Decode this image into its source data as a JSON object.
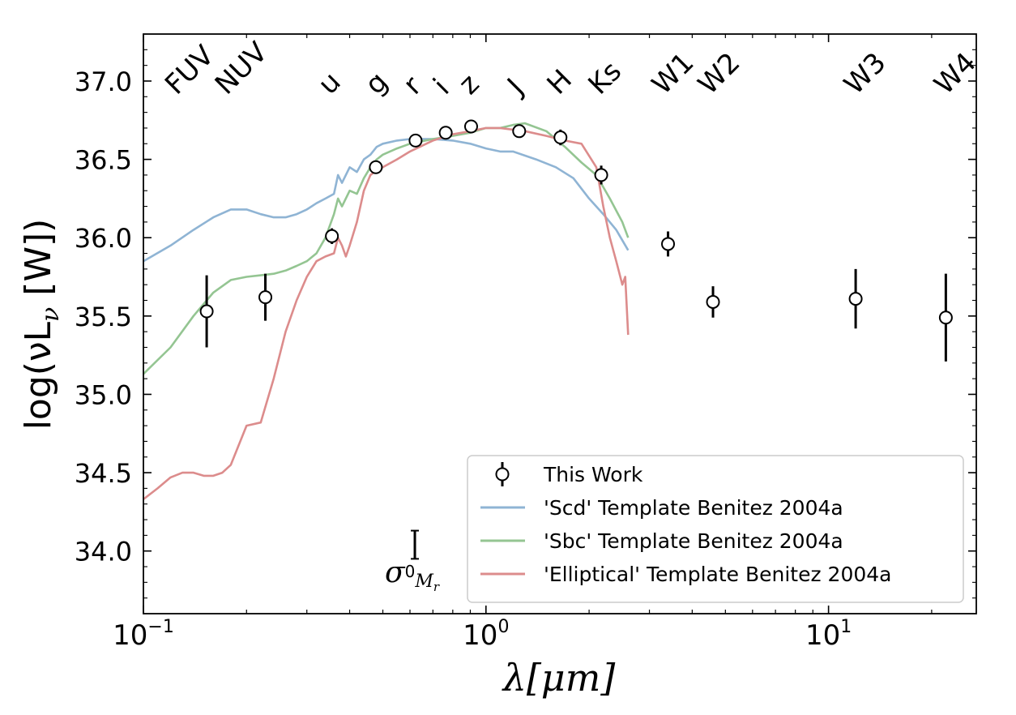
{
  "chart_data": {
    "type": "scatter",
    "xlabel_prefix": "λ",
    "xlabel_unit": "[μm]",
    "ylabel_main": "log(νL",
    "ylabel_sub": "ν",
    "ylabel_unit": " [W])",
    "xscale": "log",
    "xlim": [
      0.1,
      27
    ],
    "ylim": [
      33.6,
      37.3
    ],
    "x_ticks": [
      {
        "value": 0.1,
        "base": "10",
        "exp": "−1"
      },
      {
        "value": 1,
        "base": "10",
        "exp": "0"
      },
      {
        "value": 10,
        "base": "10",
        "exp": "1"
      }
    ],
    "y_ticks": [
      {
        "value": 34.0,
        "label": "34.0"
      },
      {
        "value": 34.5,
        "label": "34.5"
      },
      {
        "value": 35.0,
        "label": "35.0"
      },
      {
        "value": 35.5,
        "label": "35.5"
      },
      {
        "value": 36.0,
        "label": "36.0"
      },
      {
        "value": 36.5,
        "label": "36.5"
      },
      {
        "value": 37.0,
        "label": "37.0"
      }
    ],
    "band_labels": [
      {
        "label": "FUV",
        "x": 0.125,
        "y": 37.05
      },
      {
        "label": "NUV",
        "x": 0.175,
        "y": 37.05
      },
      {
        "label": "u",
        "x": 0.35,
        "y": 37.05
      },
      {
        "label": "g",
        "x": 0.48,
        "y": 37.05
      },
      {
        "label": "r",
        "x": 0.62,
        "y": 37.05
      },
      {
        "label": "i",
        "x": 0.76,
        "y": 37.05
      },
      {
        "label": "z",
        "x": 0.9,
        "y": 37.05
      },
      {
        "label": "J",
        "x": 1.25,
        "y": 37.05
      },
      {
        "label": "H",
        "x": 1.63,
        "y": 37.05
      },
      {
        "label": "Ks",
        "x": 2.15,
        "y": 37.05
      },
      {
        "label": "W1",
        "x": 3.3,
        "y": 37.05
      },
      {
        "label": "W2",
        "x": 4.5,
        "y": 37.05
      },
      {
        "label": "W3",
        "x": 12.0,
        "y": 37.05
      },
      {
        "label": "W4",
        "x": 22.0,
        "y": 37.05
      }
    ],
    "colors": {
      "scd": "#8fb4d4",
      "sbc": "#94c592",
      "elliptical": "#dc8c8c",
      "points": "#000000"
    },
    "series": [
      {
        "name": "This Work",
        "kind": "errorbar",
        "points": [
          {
            "x": 0.153,
            "y": 35.53,
            "err": 0.23
          },
          {
            "x": 0.227,
            "y": 35.62,
            "err": 0.15
          },
          {
            "x": 0.355,
            "y": 36.01,
            "err": 0.05
          },
          {
            "x": 0.477,
            "y": 36.45,
            "err": 0.03
          },
          {
            "x": 0.623,
            "y": 36.62,
            "err": 0.03
          },
          {
            "x": 0.763,
            "y": 36.67,
            "err": 0.03
          },
          {
            "x": 0.905,
            "y": 36.71,
            "err": 0.03
          },
          {
            "x": 1.25,
            "y": 36.68,
            "err": 0.03
          },
          {
            "x": 1.65,
            "y": 36.64,
            "err": 0.05
          },
          {
            "x": 2.17,
            "y": 36.4,
            "err": 0.06
          },
          {
            "x": 3.4,
            "y": 35.96,
            "err": 0.08
          },
          {
            "x": 4.6,
            "y": 35.59,
            "err": 0.1
          },
          {
            "x": 12.0,
            "y": 35.61,
            "err": 0.19
          },
          {
            "x": 22.0,
            "y": 35.49,
            "err": 0.28
          }
        ]
      },
      {
        "name": "'Scd' Template Benitez 2004a",
        "kind": "line",
        "color_key": "scd",
        "x": [
          0.1,
          0.12,
          0.14,
          0.16,
          0.18,
          0.2,
          0.22,
          0.24,
          0.26,
          0.28,
          0.3,
          0.32,
          0.34,
          0.36,
          0.37,
          0.38,
          0.4,
          0.42,
          0.44,
          0.46,
          0.48,
          0.5,
          0.55,
          0.6,
          0.7,
          0.8,
          0.9,
          1.0,
          1.1,
          1.2,
          1.4,
          1.6,
          1.8,
          2.0,
          2.2,
          2.4,
          2.6
        ],
        "y": [
          35.85,
          35.95,
          36.05,
          36.13,
          36.18,
          36.18,
          36.15,
          36.13,
          36.13,
          36.15,
          36.18,
          36.22,
          36.25,
          36.28,
          36.4,
          36.35,
          36.45,
          36.42,
          36.5,
          36.53,
          36.58,
          36.6,
          36.62,
          36.63,
          36.63,
          36.62,
          36.6,
          36.57,
          36.55,
          36.55,
          36.5,
          36.45,
          36.38,
          36.25,
          36.15,
          36.05,
          35.92
        ]
      },
      {
        "name": "'Sbc' Template Benitez 2004a",
        "kind": "line",
        "color_key": "sbc",
        "x": [
          0.1,
          0.12,
          0.14,
          0.16,
          0.18,
          0.2,
          0.22,
          0.24,
          0.26,
          0.28,
          0.3,
          0.32,
          0.34,
          0.36,
          0.37,
          0.38,
          0.4,
          0.42,
          0.44,
          0.46,
          0.48,
          0.5,
          0.55,
          0.6,
          0.7,
          0.8,
          0.9,
          1.0,
          1.1,
          1.2,
          1.3,
          1.5,
          1.7,
          1.9,
          2.1,
          2.3,
          2.5,
          2.6
        ],
        "y": [
          35.13,
          35.3,
          35.5,
          35.65,
          35.73,
          35.75,
          35.76,
          35.77,
          35.79,
          35.82,
          35.85,
          35.9,
          36.0,
          36.15,
          36.25,
          36.2,
          36.3,
          36.28,
          36.38,
          36.45,
          36.5,
          36.53,
          36.57,
          36.6,
          36.63,
          36.65,
          36.67,
          36.7,
          36.7,
          36.72,
          36.73,
          36.68,
          36.58,
          36.48,
          36.4,
          36.25,
          36.1,
          36.0
        ]
      },
      {
        "name": "'Elliptical' Template Benitez 2004a",
        "kind": "line",
        "color_key": "elliptical",
        "x": [
          0.1,
          0.11,
          0.12,
          0.13,
          0.14,
          0.15,
          0.16,
          0.17,
          0.18,
          0.2,
          0.22,
          0.24,
          0.26,
          0.28,
          0.3,
          0.32,
          0.34,
          0.36,
          0.37,
          0.38,
          0.39,
          0.4,
          0.42,
          0.44,
          0.46,
          0.48,
          0.5,
          0.55,
          0.6,
          0.7,
          0.8,
          0.9,
          1.0,
          1.1,
          1.3,
          1.5,
          1.7,
          1.9,
          2.1,
          2.2,
          2.3,
          2.4,
          2.5,
          2.55,
          2.6
        ],
        "y": [
          34.33,
          34.4,
          34.47,
          34.5,
          34.5,
          34.48,
          34.48,
          34.5,
          34.55,
          34.8,
          34.82,
          35.1,
          35.4,
          35.6,
          35.75,
          35.85,
          35.88,
          35.9,
          36.0,
          35.95,
          35.88,
          35.95,
          36.1,
          36.3,
          36.4,
          36.43,
          36.45,
          36.5,
          36.55,
          36.62,
          36.66,
          36.68,
          36.7,
          36.7,
          36.68,
          36.65,
          36.62,
          36.6,
          36.45,
          36.2,
          36.0,
          35.85,
          35.7,
          35.75,
          35.38
        ]
      }
    ],
    "sigma_annotation": {
      "label_sym": "σ",
      "label_sup": "0",
      "label_sub": "M",
      "label_subsub": "r",
      "x": 0.62,
      "y": 34.04,
      "err": 0.09
    },
    "legend": {
      "placement": "lower-right"
    }
  }
}
